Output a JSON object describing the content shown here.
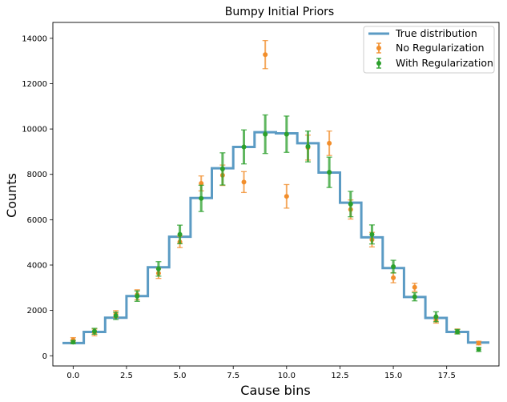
{
  "chart_data": {
    "type": "line",
    "title": "Bumpy Initial Priors",
    "xlabel": "Cause bins",
    "ylabel": "Counts",
    "xlim": [
      -0.95,
      19.95
    ],
    "ylim": [
      -450,
      14700
    ],
    "xticks": [
      0.0,
      2.5,
      5.0,
      7.5,
      10.0,
      12.5,
      15.0,
      17.5
    ],
    "xtick_labels": [
      "0.0",
      "2.5",
      "5.0",
      "7.5",
      "10.0",
      "12.5",
      "15.0",
      "17.5"
    ],
    "yticks": [
      0,
      2000,
      4000,
      6000,
      8000,
      10000,
      12000,
      14000
    ],
    "ytick_labels": [
      "0",
      "2000",
      "4000",
      "6000",
      "8000",
      "10000",
      "12000",
      "14000"
    ],
    "grid": false,
    "legend_position": "upper right",
    "series": [
      {
        "name": "True distribution",
        "kind": "step",
        "color": "#5b9bc4",
        "x": [
          0,
          1,
          2,
          3,
          4,
          5,
          6,
          7,
          8,
          9,
          10,
          11,
          12,
          13,
          14,
          15,
          16,
          17,
          18,
          19
        ],
        "values": [
          560,
          1050,
          1680,
          2630,
          3900,
          5250,
          6960,
          8270,
          9210,
          9860,
          9810,
          9370,
          8080,
          6750,
          5220,
          3870,
          2590,
          1670,
          1050,
          580
        ]
      },
      {
        "name": "No Regularization",
        "kind": "errorbar",
        "color": "#f28e2b",
        "x": [
          0,
          1,
          2,
          3,
          4,
          5,
          6,
          7,
          8,
          9,
          10,
          11,
          12,
          13,
          14,
          15,
          16,
          17,
          18,
          19
        ],
        "values": [
          700,
          1030,
          1840,
          2690,
          3640,
          5020,
          7600,
          7960,
          7660,
          13280,
          7030,
          9180,
          9370,
          6450,
          5120,
          3440,
          3020,
          1570,
          1080,
          560
        ],
        "errors": [
          100,
          150,
          150,
          220,
          230,
          250,
          330,
          450,
          460,
          620,
          520,
          550,
          540,
          420,
          320,
          220,
          180,
          130,
          100,
          80
        ]
      },
      {
        "name": "With Regularization",
        "kind": "errorbar",
        "color": "#2ca02c",
        "x": [
          0,
          1,
          2,
          3,
          4,
          5,
          6,
          7,
          8,
          9,
          10,
          11,
          12,
          13,
          14,
          15,
          16,
          17,
          18,
          19
        ],
        "values": [
          600,
          1080,
          1760,
          2630,
          3830,
          5350,
          6940,
          8240,
          9210,
          9770,
          9770,
          9230,
          8090,
          6690,
          5350,
          3930,
          2600,
          1720,
          1060,
          280
        ],
        "errors": [
          70,
          130,
          160,
          230,
          320,
          410,
          580,
          710,
          750,
          850,
          800,
          680,
          670,
          560,
          420,
          280,
          180,
          220,
          100,
          90
        ]
      }
    ]
  }
}
